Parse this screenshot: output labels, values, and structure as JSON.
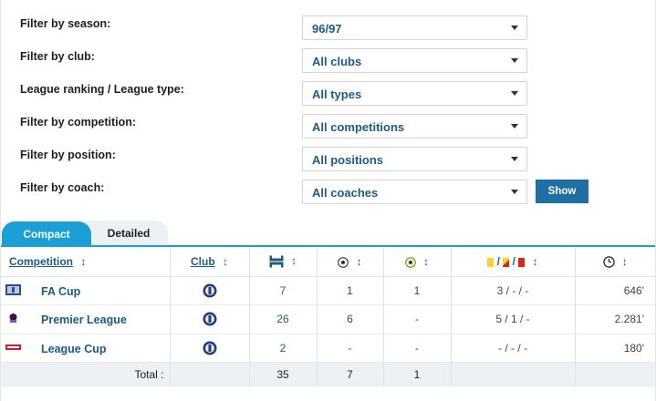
{
  "filters": [
    {
      "label": "Filter by season:",
      "value": "96/97"
    },
    {
      "label": "Filter by club:",
      "value": "All clubs"
    },
    {
      "label": "League ranking / League type:",
      "value": "All types"
    },
    {
      "label": "Filter by competition:",
      "value": "All competitions"
    },
    {
      "label": "Filter by position:",
      "value": "All positions"
    },
    {
      "label": "Filter by coach:",
      "value": "All coaches"
    }
  ],
  "show_button": "Show",
  "tabs": {
    "compact": "Compact",
    "detailed": "Detailed"
  },
  "table": {
    "headers": {
      "competition": "Competition",
      "club": "Club",
      "sort_glyph": "↕",
      "cards_sep": "/"
    },
    "rows": [
      {
        "competition": "FA Cup",
        "icon": "fa-cup-logo",
        "apps": "7",
        "goals": "1",
        "assists": "1",
        "cards": "3 / - / -",
        "minutes": "646'"
      },
      {
        "competition": "Premier League",
        "icon": "premier-league-logo",
        "apps": "26",
        "goals": "6",
        "assists": "-",
        "cards": "5 / 1 / -",
        "minutes": "2.281'"
      },
      {
        "competition": "League Cup",
        "icon": "league-cup-logo",
        "apps": "2",
        "goals": "-",
        "assists": "-",
        "cards": "- / - / -",
        "minutes": "180'"
      }
    ],
    "total": {
      "label": "Total :",
      "apps": "35",
      "goals": "7",
      "assists": "1"
    }
  },
  "colors": {
    "accent": "#1aa0d6",
    "link": "#1d5a86",
    "button": "#1d6fa5"
  }
}
